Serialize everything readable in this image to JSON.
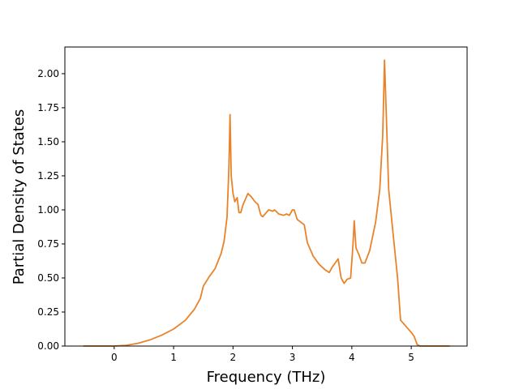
{
  "chart_data": {
    "type": "line",
    "xlabel": "Frequency (THz)",
    "ylabel": "Partial Density of States",
    "x": [
      -0.52,
      0,
      0.2,
      0.4,
      0.6,
      0.8,
      1.0,
      1.2,
      1.35,
      1.45,
      1.5,
      1.6,
      1.7,
      1.8,
      1.85,
      1.9,
      1.93,
      1.95,
      1.97,
      2.0,
      2.03,
      2.07,
      2.1,
      2.13,
      2.17,
      2.25,
      2.3,
      2.37,
      2.42,
      2.47,
      2.5,
      2.6,
      2.67,
      2.7,
      2.77,
      2.85,
      2.9,
      2.95,
      3.0,
      3.03,
      3.08,
      3.2,
      3.25,
      3.35,
      3.45,
      3.55,
      3.62,
      3.67,
      3.72,
      3.77,
      3.82,
      3.87,
      3.92,
      3.98,
      4.02,
      4.04,
      4.07,
      4.12,
      4.17,
      4.22,
      4.3,
      4.4,
      4.47,
      4.52,
      4.55,
      4.58,
      4.62,
      4.7,
      4.77,
      4.82,
      4.9,
      5.0,
      5.05,
      5.1,
      5.15,
      5.65
    ],
    "series": [
      {
        "color": "#e8832a",
        "values": [
          0,
          0,
          0.005,
          0.02,
          0.045,
          0.08,
          0.125,
          0.19,
          0.27,
          0.35,
          0.44,
          0.51,
          0.57,
          0.68,
          0.77,
          0.95,
          1.3,
          1.7,
          1.25,
          1.12,
          1.06,
          1.09,
          0.98,
          0.98,
          1.04,
          1.12,
          1.1,
          1.06,
          1.04,
          0.96,
          0.95,
          1.0,
          0.99,
          1.0,
          0.97,
          0.96,
          0.97,
          0.96,
          1.0,
          1.0,
          0.93,
          0.89,
          0.76,
          0.66,
          0.6,
          0.56,
          0.54,
          0.58,
          0.61,
          0.64,
          0.5,
          0.46,
          0.49,
          0.5,
          0.75,
          0.92,
          0.72,
          0.67,
          0.61,
          0.61,
          0.7,
          0.91,
          1.15,
          1.55,
          2.1,
          1.7,
          1.15,
          0.8,
          0.5,
          0.19,
          0.15,
          0.1,
          0.07,
          0.01,
          0,
          0
        ]
      }
    ],
    "xlim": [
      -0.83,
      5.94
    ],
    "xticks": [
      0,
      1,
      2,
      3,
      4,
      5
    ],
    "ylim": [
      0,
      2.196
    ],
    "yticks": [
      {
        "value": 0,
        "label": "0.00"
      },
      {
        "value": 0.25,
        "label": "0.25"
      },
      {
        "value": 0.5,
        "label": "0.50"
      },
      {
        "value": 0.75,
        "label": "0.75"
      },
      {
        "value": 1.0,
        "label": "1.00"
      },
      {
        "value": 1.25,
        "label": "1.25"
      },
      {
        "value": 1.5,
        "label": "1.50"
      },
      {
        "value": 1.75,
        "label": "1.75"
      },
      {
        "value": 2.0,
        "label": "2.00"
      }
    ]
  }
}
